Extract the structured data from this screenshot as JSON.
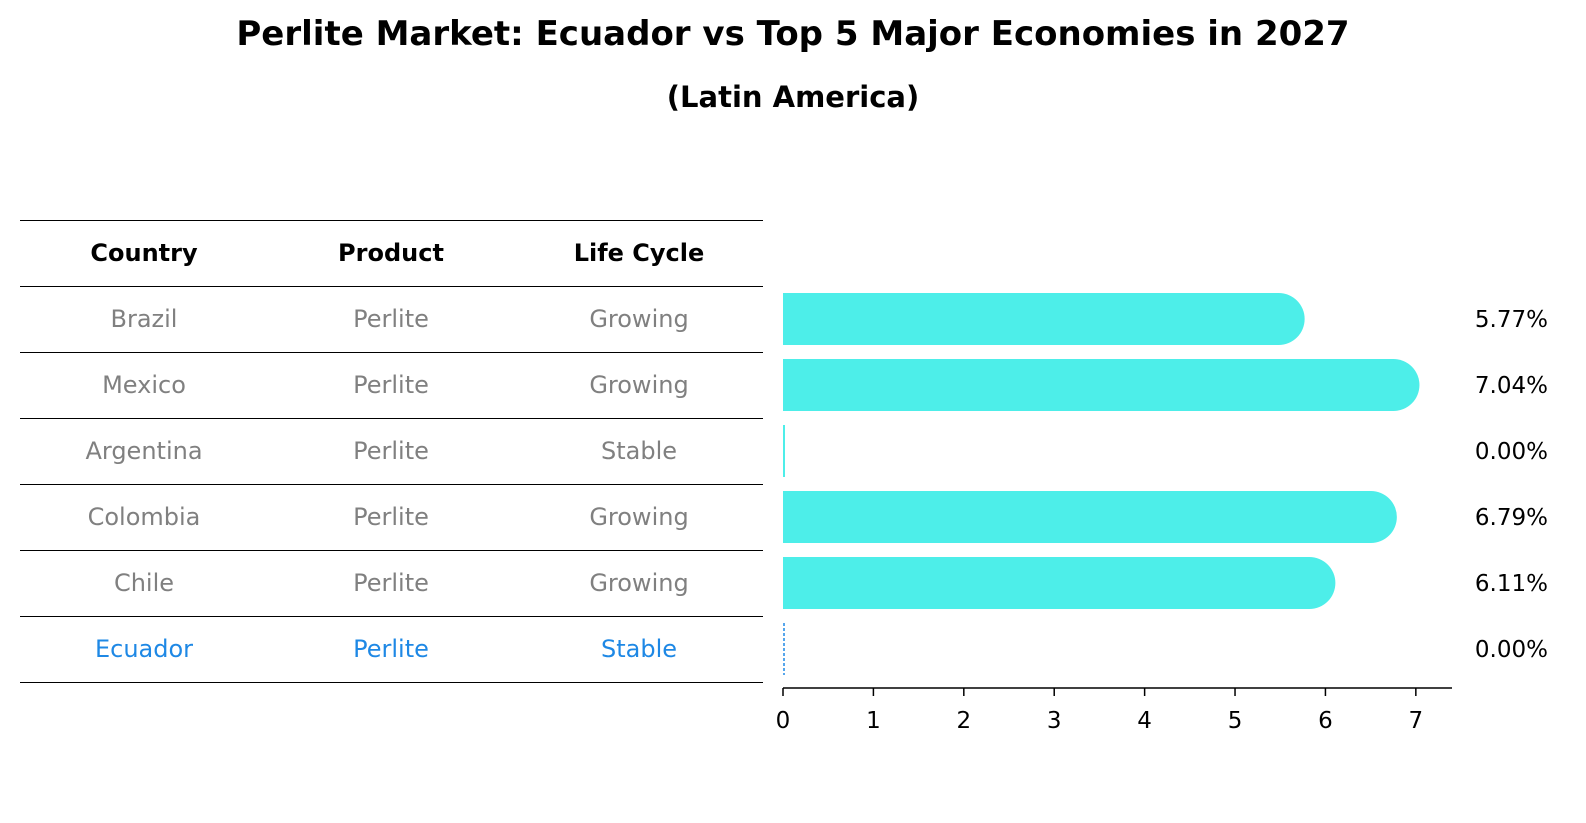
{
  "chart_data": {
    "type": "bar",
    "orientation": "horizontal",
    "title": "Perlite Market: Ecuador vs Top 5 Major Economies in 2027",
    "subtitle": "(Latin America)",
    "table": {
      "headers": [
        "Country",
        "Product",
        "Life Cycle"
      ],
      "rows": [
        {
          "country": "Brazil",
          "product": "Perlite",
          "life_cycle": "Growing",
          "highlight": false
        },
        {
          "country": "Mexico",
          "product": "Perlite",
          "life_cycle": "Growing",
          "highlight": false
        },
        {
          "country": "Argentina",
          "product": "Perlite",
          "life_cycle": "Stable",
          "highlight": false
        },
        {
          "country": "Colombia",
          "product": "Perlite",
          "life_cycle": "Growing",
          "highlight": false
        },
        {
          "country": "Chile",
          "product": "Perlite",
          "life_cycle": "Growing",
          "highlight": false
        },
        {
          "country": "Ecuador",
          "product": "Perlite",
          "life_cycle": "Stable",
          "highlight": true
        }
      ]
    },
    "categories": [
      "Brazil",
      "Mexico",
      "Argentina",
      "Colombia",
      "Chile",
      "Ecuador"
    ],
    "values": [
      5.77,
      7.04,
      0.0,
      6.79,
      6.11,
      0.0
    ],
    "value_labels": [
      "5.77%",
      "7.04%",
      "0.00%",
      "6.79%",
      "6.11%",
      "0.00%"
    ],
    "xlim": [
      0,
      7.4
    ],
    "xticks": [
      0,
      1,
      2,
      3,
      4,
      5,
      6,
      7
    ],
    "grid": false,
    "bar_color": "#4deee9",
    "highlight_color": "#1e88e5",
    "text_color": "#808080"
  }
}
